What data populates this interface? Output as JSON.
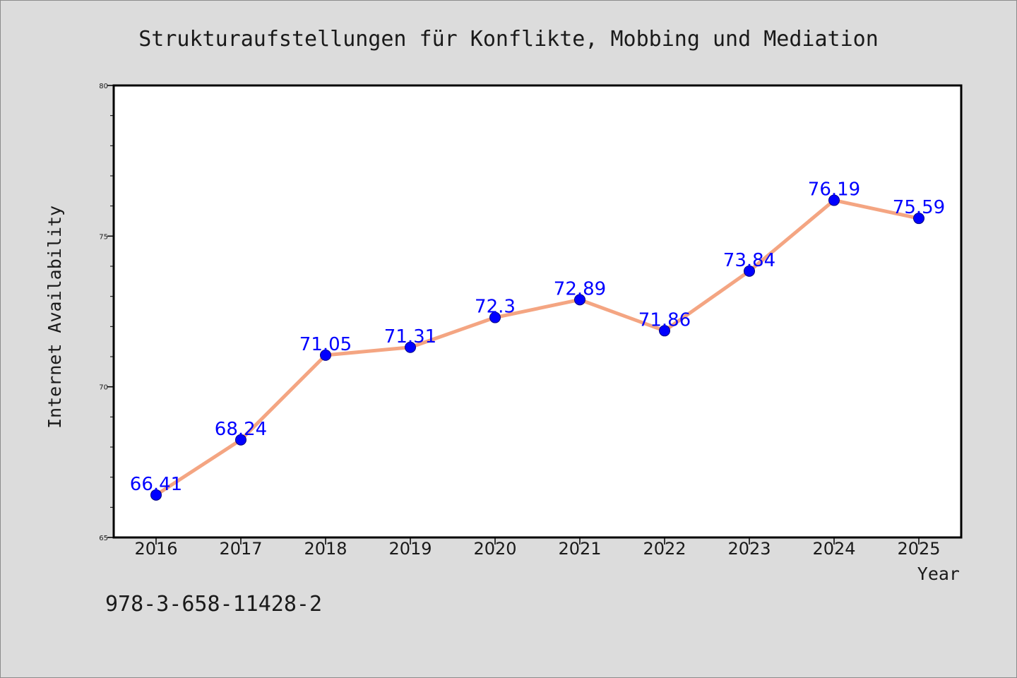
{
  "chart_data": {
    "type": "line",
    "title": "Strukturaufstellungen für Konflikte, Mobbing und Mediation",
    "xlabel": "Year",
    "ylabel": "Internet Availability",
    "categories": [
      "2016",
      "2017",
      "2018",
      "2019",
      "2020",
      "2021",
      "2022",
      "2023",
      "2024",
      "2025"
    ],
    "series": [
      {
        "values": [
          66.41,
          68.24,
          71.05,
          71.31,
          72.3,
          72.89,
          71.86,
          73.84,
          76.19,
          75.59
        ],
        "labels": [
          "66.41",
          "68.24",
          "71.05",
          "71.31",
          "72.3",
          "72.89",
          "71.86",
          "73.84",
          "76.19",
          "75.59"
        ],
        "line_color": "#f4a582",
        "marker_color": "#0000ff"
      }
    ],
    "ylim": [
      65,
      80
    ],
    "yticks": [
      65,
      70,
      75,
      80
    ],
    "ytick_labels": [
      "65",
      "70",
      "75",
      "80"
    ],
    "grid": false,
    "legend": "none",
    "data_label_color": "#0000ff"
  },
  "annotation": {
    "text": "978-3-658-11428-2"
  },
  "colors": {
    "background": "#dcdcdc",
    "plot_background": "#ffffff",
    "axes": "#000000"
  }
}
